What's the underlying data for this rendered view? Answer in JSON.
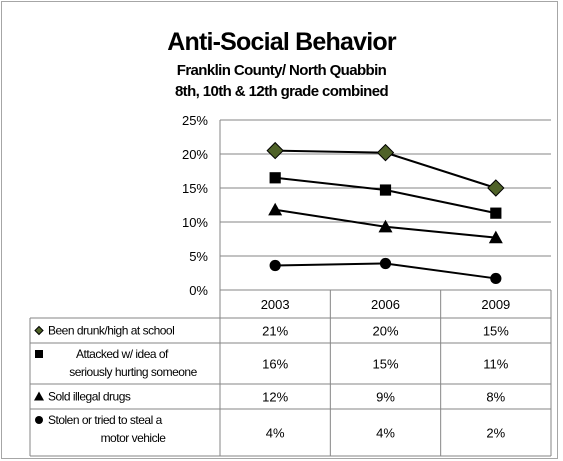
{
  "chart_data": {
    "type": "line",
    "title": "Anti-Social Behavior",
    "subtitle": [
      "Franklin County/ North Quabbin",
      "8th, 10th & 12th grade combined"
    ],
    "categories": [
      "2003",
      "2006",
      "2009"
    ],
    "ylim": [
      0,
      25
    ],
    "yticks": [
      "0%",
      "5%",
      "10%",
      "15%",
      "20%",
      "25%"
    ],
    "grid": true,
    "legend": "data-table",
    "series": [
      {
        "name": [
          "Been drunk/high at school"
        ],
        "marker": "diamond",
        "color": "#4f6228",
        "values": [
          20.5,
          20.2,
          15.0
        ],
        "labels": [
          "21%",
          "20%",
          "15%"
        ]
      },
      {
        "name": [
          "Attacked w/ idea of",
          "seriously hurting someone"
        ],
        "marker": "square",
        "color": "#000000",
        "values": [
          16.5,
          14.7,
          11.3
        ],
        "labels": [
          "16%",
          "15%",
          "11%"
        ]
      },
      {
        "name": [
          "Sold illegal drugs"
        ],
        "marker": "triangle",
        "color": "#000000",
        "values": [
          11.8,
          9.3,
          7.7
        ],
        "labels": [
          "12%",
          "9%",
          "8%"
        ]
      },
      {
        "name": [
          "Stolen or tried to steal a",
          "motor vehicle"
        ],
        "marker": "circle",
        "color": "#000000",
        "values": [
          3.6,
          3.9,
          1.7
        ],
        "labels": [
          "4%",
          "4%",
          "2%"
        ]
      }
    ]
  }
}
